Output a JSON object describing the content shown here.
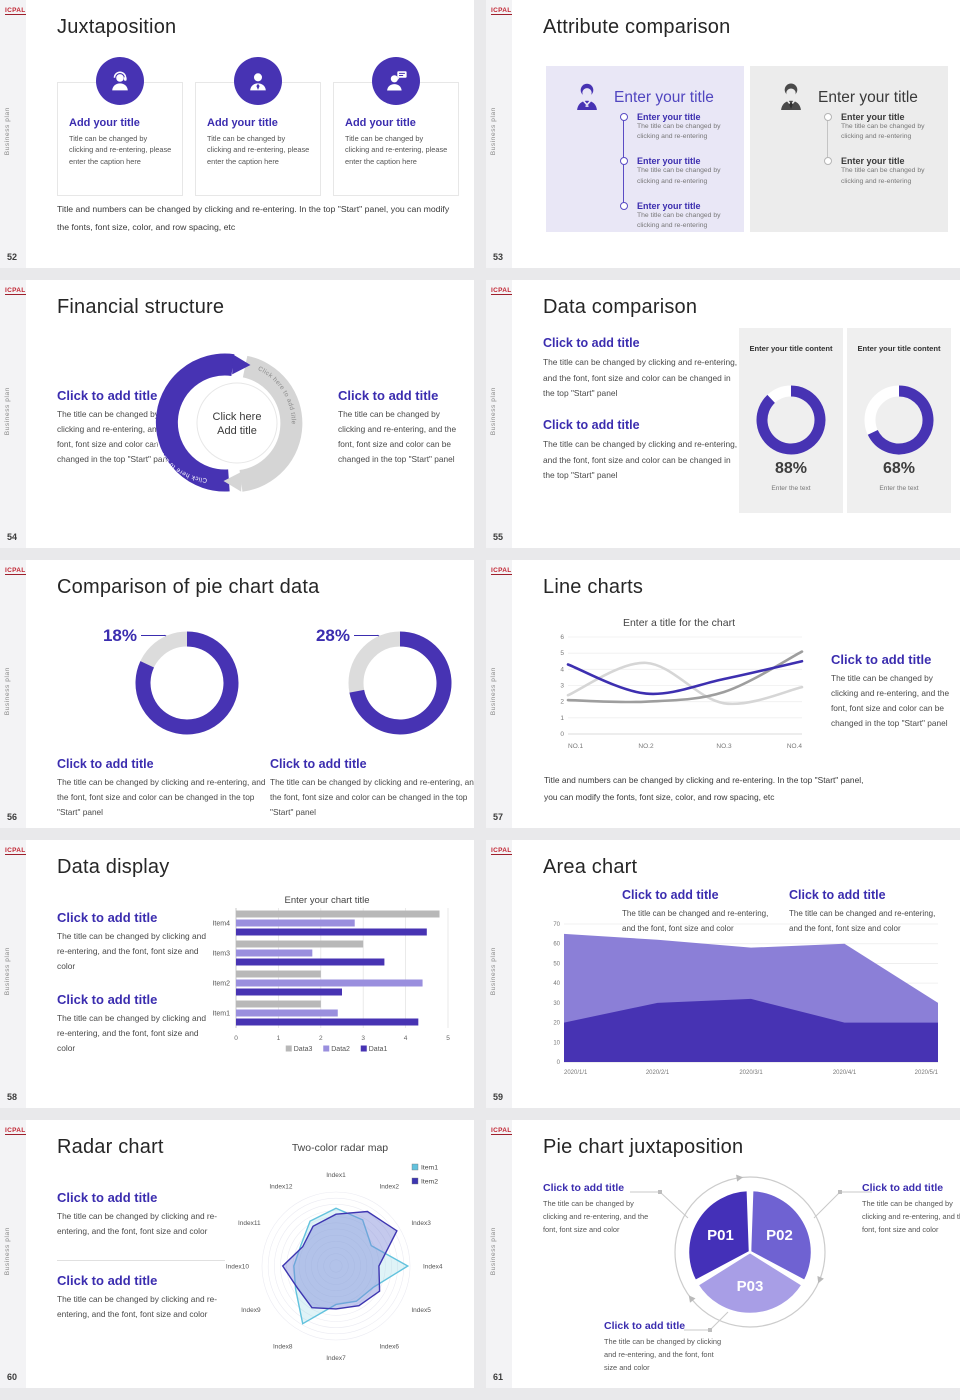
{
  "meta": {
    "logo": "ICPAL",
    "sidebar_text": "Business plan",
    "accent": "#4733b3"
  },
  "slides": [
    {
      "num": "52",
      "title": "Juxtaposition",
      "cards": [
        {
          "title": "Add your title",
          "caption": "Title can be changed by clicking and re-entering, please enter the caption here"
        },
        {
          "title": "Add your title",
          "caption": "Title can be changed by clicking and re-entering, please enter the caption here"
        },
        {
          "title": "Add your title",
          "caption": "Title can be changed by clicking and re-entering, please enter the caption here"
        }
      ],
      "footer": "Title and numbers can be changed by clicking and re-entering. In the top \"Start\" panel, you can modify the fonts, font size, color, and row spacing, etc"
    },
    {
      "num": "53",
      "title": "Attribute comparison",
      "panels": [
        {
          "heading": "Enter your title",
          "items": [
            {
              "t": "Enter your title",
              "c": "The title can be changed by clicking and re-entering"
            },
            {
              "t": "Enter your title",
              "c": "The title can be changed by clicking and re-entering"
            },
            {
              "t": "Enter your title",
              "c": "The title can be changed by clicking and re-entering"
            }
          ]
        },
        {
          "heading": "Enter your title",
          "items": [
            {
              "t": "Enter your title",
              "c": "The title can be changed by clicking and re-entering"
            },
            {
              "t": "Enter your title",
              "c": "The title can be changed by clicking and re-entering"
            }
          ]
        }
      ]
    },
    {
      "num": "54",
      "title": "Financial structure",
      "left": {
        "h": "Click to add title",
        "b": "The title can be changed by clicking and re-entering, and the font, font size and color can be changed in the top \"Start\" panel"
      },
      "right": {
        "h": "Click to add title",
        "b": "The title can be changed by clicking and re-entering, and the font, font size and color can be changed in the top \"Start\" panel"
      },
      "center1": "Click here",
      "center2": "Add title",
      "arc_label": "Click here to add title"
    },
    {
      "num": "55",
      "title": "Data comparison",
      "blocks": [
        {
          "h": "Click to add title",
          "b": "The title can be changed by clicking and re-entering, and the font, font size and color can be changed in the top \"Start\" panel"
        },
        {
          "h": "Click to add title",
          "b": "The title can be changed by clicking and re-entering, and the font, font size and color can be changed in the top \"Start\" panel"
        }
      ],
      "cards": [
        {
          "header": "Enter your title content",
          "value": "88%",
          "caption": "Enter the text"
        },
        {
          "header": "Enter your title content",
          "value": "68%",
          "caption": "Enter the text"
        }
      ]
    },
    {
      "num": "56",
      "title": "Comparison of pie chart data",
      "charts": [
        {
          "label": "18%",
          "h": "Click to add title",
          "b": "The title can be changed by clicking and re-entering, and the font, font size and color can be changed in the top \"Start\" panel"
        },
        {
          "label": "28%",
          "h": "Click to add title",
          "b": "The title can be changed by clicking and re-entering, and the font, font size and color can be changed in the top \"Start\" panel"
        }
      ]
    },
    {
      "num": "57",
      "title": "Line charts",
      "chart_title": "Enter a title for the chart",
      "block": {
        "h": "Click to add title",
        "b": "The title can be changed by clicking and re-entering, and the font, font size and color can be changed in the top \"Start\" panel"
      },
      "footer": "Title and numbers can be changed by clicking and re-entering. In the top \"Start\" panel, you can modify the fonts, font size, color, and row spacing, etc"
    },
    {
      "num": "58",
      "title": "Data display",
      "chart_title": "Enter your chart title",
      "blocks": [
        {
          "h": "Click to add title",
          "b": "The title can be changed by clicking and re-entering, and the font, font size and color"
        },
        {
          "h": "Click to add title",
          "b": "The title can be changed by clicking and re-entering, and the font, font size and color"
        }
      ]
    },
    {
      "num": "59",
      "title": "Area chart",
      "blocks": [
        {
          "h": "Click to add title",
          "b": "The title can be changed and re-entering, and the font, font size and color"
        },
        {
          "h": "Click to add title",
          "b": "The title can be changed and re-entering, and the font, font size and color"
        }
      ]
    },
    {
      "num": "60",
      "title": "Radar chart",
      "chart_title": "Two-color radar map",
      "blocks": [
        {
          "h": "Click to add title",
          "b": "The title can be changed by clicking and re-entering, and the font, font size and color"
        },
        {
          "h": "Click to add title",
          "b": "The title can be changed by clicking and re-entering, and the font, font size and color"
        }
      ]
    },
    {
      "num": "61",
      "title": "Pie chart juxtaposition",
      "blocks": [
        {
          "h": "Click to add title",
          "b": "The title can be changed by clicking and re-entering, and the font, font size and color"
        },
        {
          "h": "Click to add title",
          "b": "The title can be changed by clicking and re-entering, and the font, font size and color"
        },
        {
          "h": "Click to add title",
          "b": "The title can be changed by clicking and re-entering, and the font, font size and color"
        }
      ]
    }
  ],
  "chart_data": [
    {
      "id": "donut88",
      "type": "donut",
      "slide": "55",
      "filled_pct": 88,
      "rest_pct": 12,
      "label": "88%",
      "color": "#4733b3",
      "track": "#ffffff"
    },
    {
      "id": "donut68",
      "type": "donut",
      "slide": "55",
      "filled_pct": 68,
      "rest_pct": 32,
      "label": "68%",
      "color": "#4733b3",
      "track": "#ffffff"
    },
    {
      "id": "donut18",
      "type": "donut",
      "slide": "56",
      "filled_pct": 82,
      "rest_pct": 18,
      "callout_label": "18%",
      "color": "#4733b3",
      "track": "#dcdcdc"
    },
    {
      "id": "donut28",
      "type": "donut",
      "slide": "56",
      "filled_pct": 72,
      "rest_pct": 28,
      "callout_label": "28%",
      "color": "#4733b3",
      "track": "#dcdcdc"
    },
    {
      "id": "line57",
      "type": "line",
      "title": "Enter a title for the chart",
      "x": [
        "NO.1",
        "NO.2",
        "NO.3",
        "NO.4"
      ],
      "ylim": [
        0,
        6
      ],
      "grid": true,
      "series": [
        {
          "name": "series-light-gray",
          "color": "#d6d6d6",
          "values": [
            2.4,
            4.4,
            1.9,
            2.9
          ]
        },
        {
          "name": "series-gray",
          "color": "#9e9e9e",
          "values": [
            2.1,
            2.0,
            2.6,
            5.1
          ]
        },
        {
          "name": "series-purple",
          "color": "#3d2fb0",
          "values": [
            4.3,
            2.5,
            3.4,
            4.5
          ]
        }
      ]
    },
    {
      "id": "bar58",
      "type": "bar",
      "title": "Enter your chart title",
      "orientation": "horizontal",
      "categories": [
        "Item1",
        "Item2",
        "Item3",
        "Item4"
      ],
      "xlim": [
        0,
        5
      ],
      "series": [
        {
          "name": "Data3",
          "color": "#b8b8b8",
          "values": [
            2.0,
            2.0,
            3.0,
            4.8
          ]
        },
        {
          "name": "Data2",
          "color": "#9a8fde",
          "values": [
            2.4,
            4.4,
            1.8,
            2.8
          ]
        },
        {
          "name": "Data1",
          "color": "#4733b3",
          "values": [
            4.3,
            2.5,
            3.5,
            4.5
          ]
        }
      ]
    },
    {
      "id": "area59",
      "type": "area",
      "x": [
        "2020/1/1",
        "2020/2/1",
        "2020/3/1",
        "2020/4/1",
        "2020/5/1"
      ],
      "ylim": [
        0,
        70
      ],
      "series": [
        {
          "name": "upper",
          "color": "#8b7fd7",
          "values": [
            65,
            62,
            58,
            60,
            30
          ]
        },
        {
          "name": "lower",
          "color": "#4733b3",
          "values": [
            20,
            30,
            32,
            20,
            20
          ]
        }
      ]
    },
    {
      "id": "radar60",
      "type": "radar",
      "title": "Two-color radar map",
      "axes": [
        "Index1",
        "Index2",
        "Index3",
        "Index4",
        "Index5",
        "Index6",
        "Index7",
        "Index8",
        "Index9",
        "Index10",
        "Index11",
        "Index12"
      ],
      "series": [
        {
          "name": "Item1",
          "color": "#62c2dd",
          "fill": "rgba(150,215,230,0.30)",
          "values": [
            0.78,
            0.72,
            0.55,
            0.97,
            0.58,
            0.55,
            0.52,
            0.9,
            0.63,
            0.57,
            0.55,
            0.7
          ]
        },
        {
          "name": "Item2",
          "color": "#3d35b1",
          "fill": "rgba(125,135,215,0.45)",
          "values": [
            0.7,
            0.85,
            0.95,
            0.58,
            0.68,
            0.62,
            0.58,
            0.65,
            0.6,
            0.72,
            0.52,
            0.62
          ]
        }
      ]
    },
    {
      "id": "pie61",
      "type": "pie",
      "labels": [
        "P01",
        "P02",
        "P03"
      ],
      "values": [
        33.3,
        33.3,
        33.3
      ],
      "colors": [
        "#4430b8",
        "#6f62d2",
        "#a89ee6"
      ]
    }
  ]
}
